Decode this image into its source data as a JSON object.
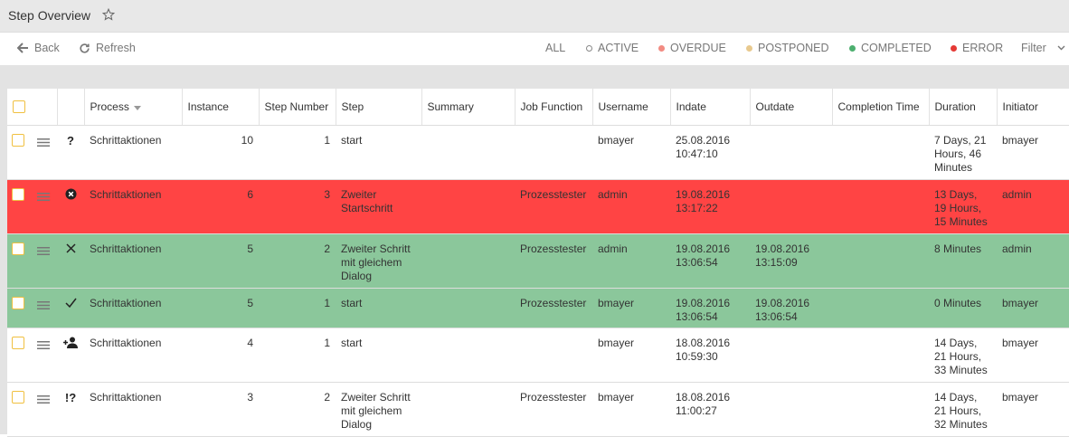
{
  "header": {
    "title": "Step Overview"
  },
  "toolbar": {
    "back": "Back",
    "refresh": "Refresh",
    "filters": [
      "ALL",
      "ACTIVE",
      "OVERDUE",
      "POSTPONED",
      "COMPLETED",
      "ERROR"
    ],
    "filter_menu": "Filter"
  },
  "table": {
    "columns": [
      "Process",
      "Instance",
      "Step Number",
      "Step",
      "Summary",
      "Job Function",
      "Username",
      "Indate",
      "Outdate",
      "Completion Time",
      "Duration",
      "Initiator"
    ],
    "rows": [
      {
        "status": "?",
        "cells": [
          "Schrittaktionen",
          10,
          1,
          "start",
          null,
          null,
          "bmayer",
          "25.08.2016 10:47:10",
          null,
          null,
          "7 Days, 21 Hours, 46 Minutes",
          "bmayer"
        ]
      },
      {
        "cells": [
          "Schrittaktionen",
          6,
          3,
          "Zweiter Startschritt",
          null,
          "Prozesstester",
          "admin",
          "19.08.2016 13:17:22",
          null,
          null,
          "13 Days, 19 Hours, 15 Minutes",
          "admin"
        ]
      },
      {
        "cells": [
          "Schrittaktionen",
          5,
          2,
          "Zweiter Schritt mit gleichem Dialog",
          null,
          "Prozesstester",
          "admin",
          "19.08.2016 13:06:54",
          "19.08.2016 13:15:09",
          null,
          "8 Minutes",
          "admin"
        ]
      },
      {
        "cells": [
          "Schrittaktionen",
          5,
          1,
          "start",
          null,
          "Prozesstester",
          "bmayer",
          "19.08.2016 13:06:54",
          "19.08.2016 13:06:54",
          null,
          "0 Minutes",
          "bmayer"
        ]
      },
      {
        "cells": [
          "Schrittaktionen",
          4,
          1,
          "start",
          null,
          null,
          "bmayer",
          "18.08.2016 10:59:30",
          null,
          null,
          "14 Days, 21 Hours, 33 Minutes",
          "bmayer"
        ]
      },
      {
        "status": "!?",
        "cells": [
          "Schrittaktionen",
          3,
          2,
          "Zweiter Schritt mit gleichem Dialog",
          null,
          "Prozesstester",
          "bmayer",
          "18.08.2016 11:00:27",
          null,
          null,
          "14 Days, 21 Hours, 32 Minutes",
          "bmayer"
        ]
      }
    ]
  }
}
